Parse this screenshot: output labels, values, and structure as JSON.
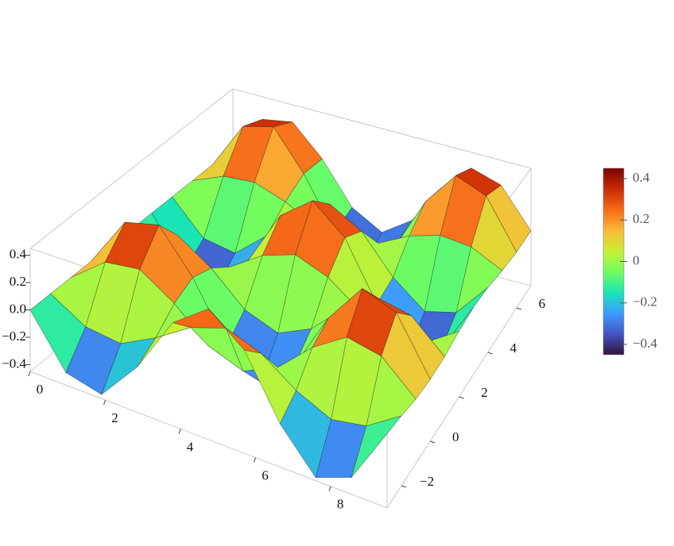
{
  "chart_data": {
    "type": "surface",
    "x": [
      0,
      0.95,
      1.9,
      2.85,
      3.8,
      4.75,
      5.7,
      6.65,
      7.6,
      8.55,
      9.5
    ],
    "y": [
      -3,
      -2,
      -1,
      0,
      1,
      2,
      3,
      4,
      5,
      6,
      7
    ],
    "z": [
      [
        0,
        -0.36,
        -0.42,
        -0.13,
        0.27,
        0.45,
        0.25,
        -0.16,
        -0.43,
        -0.34,
        0.03
      ],
      [
        0,
        -0.15,
        -0.18,
        -0.05,
        0.11,
        0.19,
        0.1,
        -0.07,
        -0.18,
        -0.14,
        0.01
      ],
      [
        0,
        0.2,
        0.23,
        0.07,
        -0.15,
        -0.24,
        -0.13,
        0.09,
        0.24,
        0.19,
        -0.02
      ],
      [
        0,
        0.37,
        0.43,
        0.13,
        -0.28,
        -0.45,
        -0.25,
        0.16,
        0.44,
        0.35,
        -0.03
      ],
      [
        0,
        0.2,
        0.23,
        0.07,
        -0.15,
        -0.24,
        -0.13,
        0.09,
        0.24,
        0.19,
        -0.02
      ],
      [
        0,
        -0.15,
        -0.18,
        -0.05,
        0.11,
        0.19,
        0.1,
        -0.07,
        -0.18,
        -0.14,
        0.01
      ],
      [
        0,
        -0.36,
        -0.42,
        -0.13,
        0.27,
        0.45,
        0.25,
        -0.16,
        -0.43,
        -0.34,
        0.03
      ],
      [
        0,
        -0.24,
        -0.28,
        -0.08,
        0.18,
        0.29,
        0.16,
        -0.11,
        -0.29,
        -0.23,
        0.02
      ],
      [
        0,
        0.1,
        0.12,
        0.04,
        -0.08,
        -0.13,
        -0.07,
        0.05,
        0.12,
        0.1,
        -0.01
      ],
      [
        0,
        0.35,
        0.41,
        0.12,
        -0.26,
        -0.43,
        -0.24,
        0.16,
        0.42,
        0.33,
        -0.03
      ],
      [
        0,
        0.28,
        0.32,
        0.1,
        -0.21,
        -0.34,
        -0.19,
        0.12,
        0.33,
        0.26,
        -0.03
      ]
    ],
    "xlim": [
      0,
      9.5
    ],
    "ylim": [
      -3,
      7
    ],
    "zlim": [
      -0.45,
      0.45
    ],
    "xticks": [
      0,
      2,
      4,
      6,
      8
    ],
    "yticks": [
      {
        "value": -2,
        "label": "−2"
      },
      0,
      2,
      4,
      6
    ],
    "zticks": [
      {
        "value": -0.4,
        "label": "−0.4"
      },
      {
        "value": -0.2,
        "label": "−0.2"
      },
      {
        "value": 0,
        "label": "0.0"
      },
      0.2,
      0.4
    ],
    "colormap": [
      "#30123b",
      "#4454c4",
      "#3e9bfe",
      "#1ae4b6",
      "#72fe5e",
      "#c8ef34",
      "#faba39",
      "#f66b19",
      "#ca2a04",
      "#7a0403"
    ],
    "colorbar": {
      "lim": [
        -0.45,
        0.45
      ],
      "ticks": [
        {
          "value": -0.4,
          "label": "−0.4"
        },
        {
          "value": -0.2,
          "label": "−0.2"
        },
        0,
        0.2,
        0.4
      ]
    }
  }
}
